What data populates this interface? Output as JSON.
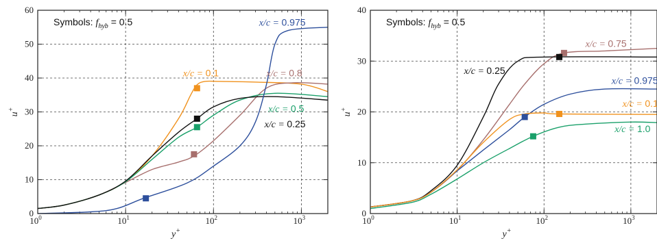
{
  "chart_data": [
    {
      "type": "line",
      "xscale": "log",
      "xlim": [
        1,
        2000
      ],
      "ylim": [
        0,
        60
      ],
      "yticks": [
        0,
        10,
        20,
        30,
        40,
        50,
        60
      ],
      "xticks": [
        {
          "value": 1,
          "base": "10",
          "exp": "0"
        },
        {
          "value": 10,
          "base": "10",
          "exp": "1"
        },
        {
          "value": 100,
          "base": "10",
          "exp": "2"
        },
        {
          "value": 1000,
          "base": "10",
          "exp": "3"
        }
      ],
      "xlabel": "y+",
      "ylabel": "u+",
      "grid": true,
      "annotation": "Symbols: f_hyb = 0.5",
      "series": [
        {
          "name": "x/c = 0.1",
          "color": "#f0921e",
          "points": [
            [
              1,
              1.5
            ],
            [
              2,
              2.5
            ],
            [
              5,
              5.5
            ],
            [
              10,
              9.5
            ],
            [
              20,
              17
            ],
            [
              40,
              28
            ],
            [
              55,
              35
            ],
            [
              65,
              38
            ],
            [
              80,
              39
            ],
            [
              120,
              39
            ],
            [
              300,
              38.8
            ],
            [
              1000,
              38.2
            ],
            [
              2000,
              36
            ]
          ],
          "marker": [
            65,
            37
          ],
          "label": {
            "x": 45,
            "y": 40.5
          }
        },
        {
          "name": "x/c = 0.8",
          "color": "#a76f6d",
          "points": [
            [
              1,
              1.5
            ],
            [
              2,
              2.5
            ],
            [
              5,
              5.5
            ],
            [
              10,
              9.2
            ],
            [
              20,
              13
            ],
            [
              40,
              15.2
            ],
            [
              60,
              17
            ],
            [
              100,
              21.5
            ],
            [
              200,
              29
            ],
            [
              400,
              37
            ],
            [
              800,
              38.6
            ],
            [
              2000,
              38.2
            ]
          ],
          "marker": [
            60,
            17.5
          ],
          "label": {
            "x": 400,
            "y": 40.5
          }
        },
        {
          "name": "x/c = 0.5",
          "color": "#1aa06a",
          "points": [
            [
              1,
              1.5
            ],
            [
              2,
              2.5
            ],
            [
              5,
              5.5
            ],
            [
              10,
              9.4
            ],
            [
              20,
              16
            ],
            [
              40,
              22.5
            ],
            [
              65,
              25.5
            ],
            [
              100,
              29
            ],
            [
              200,
              33.5
            ],
            [
              500,
              35.5
            ],
            [
              2000,
              34.5
            ]
          ],
          "marker": [
            65,
            25.5
          ],
          "label": {
            "x": 420,
            "y": 30
          }
        },
        {
          "name": "x/c = 0.25",
          "color": "#111111",
          "points": [
            [
              1,
              1.5
            ],
            [
              2,
              2.5
            ],
            [
              5,
              5.5
            ],
            [
              10,
              9.6
            ],
            [
              20,
              17
            ],
            [
              40,
              24
            ],
            [
              65,
              28
            ],
            [
              100,
              31.5
            ],
            [
              200,
              34
            ],
            [
              500,
              34.5
            ],
            [
              2000,
              33.5
            ]
          ],
          "marker": [
            65,
            28
          ],
          "label": {
            "x": 380,
            "y": 25.5
          }
        },
        {
          "name": "x/c = 0.975",
          "color": "#2d4f9c",
          "points": [
            [
              1,
              0
            ],
            [
              4,
              0.5
            ],
            [
              8,
              1.5
            ],
            [
              16,
              4.5
            ],
            [
              50,
              9
            ],
            [
              100,
              14
            ],
            [
              200,
              20
            ],
            [
              300,
              27
            ],
            [
              400,
              38
            ],
            [
              500,
              50
            ],
            [
              700,
              54
            ],
            [
              2000,
              55
            ]
          ],
          "marker": [
            17,
            4.5
          ],
          "label": {
            "x": 330,
            "y": 55.5
          }
        }
      ]
    },
    {
      "type": "line",
      "xscale": "log",
      "xlim": [
        1,
        2000
      ],
      "ylim": [
        0,
        40
      ],
      "yticks": [
        0,
        10,
        20,
        30,
        40
      ],
      "xticks": [
        {
          "value": 1,
          "base": "10",
          "exp": "0"
        },
        {
          "value": 10,
          "base": "10",
          "exp": "1"
        },
        {
          "value": 100,
          "base": "10",
          "exp": "2"
        },
        {
          "value": 1000,
          "base": "10",
          "exp": "3"
        }
      ],
      "xlabel": "y+",
      "ylabel": "u+",
      "grid": true,
      "annotation": "Symbols: f_hyb = 0.5",
      "series": [
        {
          "name": "x/c = 0.75",
          "color": "#a76f6d",
          "points": [
            [
              1,
              1.3
            ],
            [
              3,
              2.5
            ],
            [
              5,
              4.2
            ],
            [
              10,
              8.5
            ],
            [
              20,
              14.5
            ],
            [
              40,
              21.5
            ],
            [
              60,
              25.5
            ],
            [
              100,
              29.5
            ],
            [
              170,
              31.6
            ],
            [
              500,
              32
            ],
            [
              2000,
              32.5
            ]
          ],
          "marker": [
            170,
            31.6
          ],
          "label": {
            "x": 300,
            "y": 32.8
          }
        },
        {
          "name": "x/c = 0.25",
          "color": "#111111",
          "points": [
            [
              1,
              1.3
            ],
            [
              3,
              2.5
            ],
            [
              5,
              4.5
            ],
            [
              10,
              9.5
            ],
            [
              20,
              19
            ],
            [
              30,
              25.5
            ],
            [
              50,
              30
            ],
            [
              100,
              30.8
            ],
            [
              2000,
              30.8
            ]
          ],
          "marker": [
            150,
            30.8
          ],
          "label": {
            "x": 12,
            "y": 27.5
          }
        },
        {
          "name": "x/c = 0.975",
          "color": "#2d4f9c",
          "points": [
            [
              1,
              1.3
            ],
            [
              3,
              2.5
            ],
            [
              5,
              4.2
            ],
            [
              10,
              8.4
            ],
            [
              20,
              12.5
            ],
            [
              40,
              16.5
            ],
            [
              60,
              19
            ],
            [
              100,
              21.5
            ],
            [
              200,
              23.5
            ],
            [
              500,
              24.5
            ],
            [
              2000,
              24.5
            ]
          ],
          "marker": [
            60,
            19
          ],
          "label": {
            "x": 600,
            "y": 25.5
          }
        },
        {
          "name": "x/c = 0.1",
          "color": "#f0921e",
          "points": [
            [
              1,
              1.3
            ],
            [
              3,
              2.5
            ],
            [
              5,
              4.2
            ],
            [
              10,
              8.6
            ],
            [
              20,
              14
            ],
            [
              40,
              18.5
            ],
            [
              60,
              19.6
            ],
            [
              100,
              19.8
            ],
            [
              150,
              19.6
            ],
            [
              2000,
              19.5
            ]
          ],
          "marker": [
            150,
            19.6
          ],
          "label": {
            "x": 800,
            "y": 21
          }
        },
        {
          "name": "x/c = 1.0",
          "color": "#1aa06a",
          "points": [
            [
              1,
              1
            ],
            [
              3,
              2.2
            ],
            [
              5,
              3.8
            ],
            [
              10,
              6.8
            ],
            [
              20,
              10
            ],
            [
              40,
              12.8
            ],
            [
              75,
              15.2
            ],
            [
              150,
              17
            ],
            [
              300,
              17.6
            ],
            [
              1000,
              18
            ],
            [
              2000,
              17.9
            ]
          ],
          "marker": [
            75,
            15.2
          ],
          "label": {
            "x": 650,
            "y": 16
          }
        }
      ]
    }
  ]
}
